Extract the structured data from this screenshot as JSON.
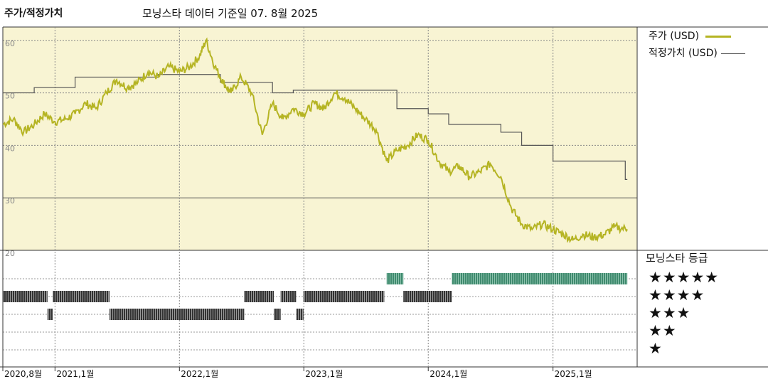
{
  "title": "주가/적정가치",
  "subtitle": "모닝스타 데이터 기준일 07. 8월 2025",
  "legend": {
    "price_label": "주가 (USD)",
    "fair_label": "적정가치 (USD)",
    "price_color": "#b5b423",
    "fair_color": "#555555"
  },
  "rating_title": "모닝스타 등급",
  "stars": [
    "★★★★★",
    "★★★★",
    "★★★",
    "★★",
    "★"
  ],
  "rating_colors": {
    "five": "#3f8a6e",
    "four": "#333333",
    "three": "#333333"
  },
  "colors": {
    "plot_bg": "#f8f4d3",
    "grid": "#888888"
  },
  "chart_data": {
    "type": "line",
    "title": "주가/적정가치",
    "ylim": [
      20,
      62
    ],
    "y_ticks": [
      20,
      30,
      40,
      50,
      60
    ],
    "x_ticks": [
      {
        "label": "2020,8월",
        "date": "2020-08"
      },
      {
        "label": "2021,1월",
        "date": "2021-01"
      },
      {
        "label": "2022,1월",
        "date": "2022-01"
      },
      {
        "label": "2023,1월",
        "date": "2023-01"
      },
      {
        "label": "2024,1월",
        "date": "2024-01"
      },
      {
        "label": "2025,1월",
        "date": "2025-01"
      }
    ],
    "grid": true,
    "legend_position": "right",
    "series": [
      {
        "name": "주가 (USD)",
        "points": [
          [
            "2020-08-01",
            44
          ],
          [
            "2020-09-01",
            45
          ],
          [
            "2020-10-01",
            42.5
          ],
          [
            "2020-11-01",
            44
          ],
          [
            "2020-12-01",
            46
          ],
          [
            "2021-01-01",
            44.5
          ],
          [
            "2021-02-01",
            45
          ],
          [
            "2021-03-01",
            46
          ],
          [
            "2021-04-01",
            48
          ],
          [
            "2021-05-01",
            47
          ],
          [
            "2021-06-01",
            50
          ],
          [
            "2021-07-01",
            52.5
          ],
          [
            "2021-08-01",
            51
          ],
          [
            "2021-09-01",
            52
          ],
          [
            "2021-10-01",
            54
          ],
          [
            "2021-11-01",
            53
          ],
          [
            "2021-12-01",
            55
          ],
          [
            "2022-01-01",
            54
          ],
          [
            "2022-02-01",
            55
          ],
          [
            "2022-03-01",
            57
          ],
          [
            "2022-03-20",
            60
          ],
          [
            "2022-04-15",
            55
          ],
          [
            "2022-05-10",
            52
          ],
          [
            "2022-06-01",
            50
          ],
          [
            "2022-07-01",
            53
          ],
          [
            "2022-08-01",
            50
          ],
          [
            "2022-09-01",
            42
          ],
          [
            "2022-10-01",
            48
          ],
          [
            "2022-11-01",
            45
          ],
          [
            "2022-12-01",
            47
          ],
          [
            "2023-01-01",
            46
          ],
          [
            "2023-02-01",
            48
          ],
          [
            "2023-03-01",
            47
          ],
          [
            "2023-04-01",
            50
          ],
          [
            "2023-05-01",
            49
          ],
          [
            "2023-06-01",
            47
          ],
          [
            "2023-07-01",
            45
          ],
          [
            "2023-08-01",
            43
          ],
          [
            "2023-09-01",
            37
          ],
          [
            "2023-10-01",
            39
          ],
          [
            "2023-11-01",
            40
          ],
          [
            "2023-12-01",
            42
          ],
          [
            "2024-01-01",
            41
          ],
          [
            "2024-02-01",
            37
          ],
          [
            "2024-03-01",
            35
          ],
          [
            "2024-04-01",
            36
          ],
          [
            "2024-05-01",
            34
          ],
          [
            "2024-06-01",
            35
          ],
          [
            "2024-07-01",
            36.5
          ],
          [
            "2024-08-01",
            34
          ],
          [
            "2024-09-01",
            28
          ],
          [
            "2024-10-01",
            25
          ],
          [
            "2024-11-01",
            24
          ],
          [
            "2024-12-01",
            25
          ],
          [
            "2025-01-01",
            24
          ],
          [
            "2025-02-01",
            23
          ],
          [
            "2025-03-01",
            22
          ],
          [
            "2025-04-01",
            23
          ],
          [
            "2025-05-01",
            22.5
          ],
          [
            "2025-06-01",
            23
          ],
          [
            "2025-07-01",
            24.5
          ],
          [
            "2025-08-07",
            24
          ]
        ]
      },
      {
        "name": "적정가치 (USD)",
        "points": [
          [
            "2020-08-01",
            50
          ],
          [
            "2020-11-01",
            51
          ],
          [
            "2021-03-01",
            53
          ],
          [
            "2021-08-01",
            53
          ],
          [
            "2021-11-01",
            53.5
          ],
          [
            "2022-01-01",
            53.5
          ],
          [
            "2022-05-01",
            52
          ],
          [
            "2022-10-01",
            50
          ],
          [
            "2022-12-01",
            50.5
          ],
          [
            "2023-09-01",
            50.5
          ],
          [
            "2023-10-01",
            47
          ],
          [
            "2024-01-01",
            46
          ],
          [
            "2024-03-01",
            44
          ],
          [
            "2024-08-01",
            42.5
          ],
          [
            "2024-10-01",
            40
          ],
          [
            "2025-01-01",
            37
          ],
          [
            "2025-08-01",
            33.5
          ]
        ]
      }
    ],
    "ratings": [
      {
        "stars": 4,
        "from": "2020-08-01",
        "to": "2020-12-10"
      },
      {
        "stars": 3,
        "from": "2020-12-10",
        "to": "2020-12-25"
      },
      {
        "stars": 4,
        "from": "2020-12-25",
        "to": "2021-06-10"
      },
      {
        "stars": 3,
        "from": "2021-06-10",
        "to": "2022-07-10"
      },
      {
        "stars": 4,
        "from": "2022-07-10",
        "to": "2022-10-05"
      },
      {
        "stars": 3,
        "from": "2022-10-05",
        "to": "2022-10-25"
      },
      {
        "stars": 4,
        "from": "2022-10-25",
        "to": "2022-12-10"
      },
      {
        "stars": 3,
        "from": "2022-12-10",
        "to": "2022-12-31"
      },
      {
        "stars": 4,
        "from": "2022-12-31",
        "to": "2023-08-25"
      },
      {
        "stars": 5,
        "from": "2023-09-01",
        "to": "2023-10-20"
      },
      {
        "stars": 4,
        "from": "2023-10-20",
        "to": "2024-03-10"
      },
      {
        "stars": 5,
        "from": "2024-03-10",
        "to": "2025-08-07"
      }
    ]
  }
}
